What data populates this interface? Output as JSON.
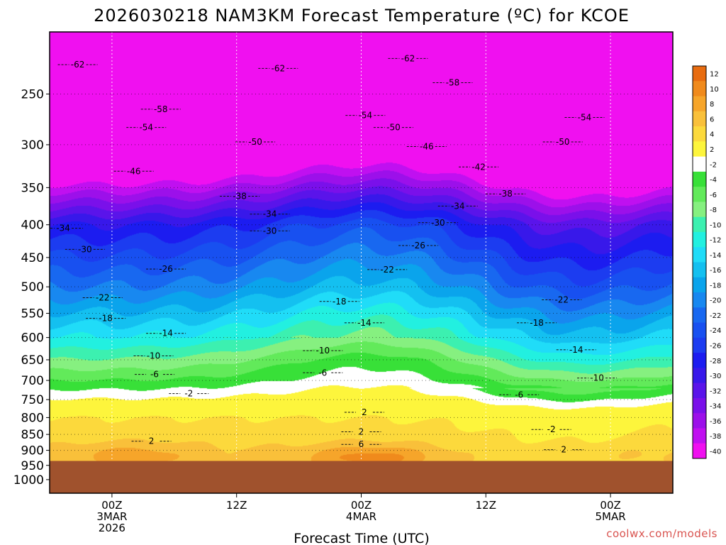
{
  "chart_data": {
    "type": "heatmap",
    "title": "2026030218 NAM3KM Forecast Temperature (ºC) for KCOE",
    "xlabel": "Forecast Time (UTC)",
    "ylabel": "",
    "y_scale": "log-pressure",
    "y_range_hpa": [
      200,
      1050
    ],
    "y_ticks": [
      "250",
      "300",
      "350",
      "400",
      "450",
      "500",
      "550",
      "600",
      "650",
      "700",
      "750",
      "800",
      "850",
      "900",
      "950",
      "1000"
    ],
    "x_ticks": [
      {
        "lines": [
          "00Z",
          "3MAR",
          "2026"
        ]
      },
      {
        "lines": [
          "12Z"
        ]
      },
      {
        "lines": [
          "00Z",
          "4MAR"
        ]
      },
      {
        "lines": [
          "12Z"
        ]
      },
      {
        "lines": [
          "00Z",
          "5MAR"
        ]
      }
    ],
    "x_tick_hours": [
      6,
      18,
      30,
      42,
      54
    ],
    "x_range_hours": [
      0,
      60
    ],
    "grid": true,
    "ground_level_hpa": 935,
    "colorbar": {
      "ticks": [
        "12",
        "10",
        "8",
        "6",
        "4",
        "2",
        "-2",
        "-4",
        "-6",
        "-8",
        "-10",
        "-12",
        "-14",
        "-16",
        "-18",
        "-20",
        "-22",
        "-24",
        "-26",
        "-28",
        "-30",
        "-32",
        "-34",
        "-36",
        "-38",
        "-40"
      ],
      "colors": [
        "#e86c10",
        "#f08a1c",
        "#f6a52a",
        "#f9c03a",
        "#fcd93c",
        "#fdf53c",
        "#ffffff",
        "#38e038",
        "#62ea5a",
        "#86f080",
        "#3cf0b0",
        "#22f0e0",
        "#20dcf8",
        "#14c0f0",
        "#0aa4ec",
        "#1888f0",
        "#1868f0",
        "#1850f0",
        "#1c3cf0",
        "#1c1cf0",
        "#3818ea",
        "#5a14ea",
        "#7a10ea",
        "#9c10ea",
        "#c010f0",
        "#f010f0"
      ]
    },
    "reference_levels": [
      {
        "p": 300,
        "temp": -50
      },
      {
        "p": 400,
        "temp": -30
      },
      {
        "p": 500,
        "temp": -22
      },
      {
        "p": 600,
        "temp": -14
      },
      {
        "p": 700,
        "temp": -6
      },
      {
        "p": 800,
        "temp": 2
      },
      {
        "p": 900,
        "temp": 4
      }
    ],
    "contour_labels": [
      {
        "text": "-62",
        "t": 2.7,
        "p": 225
      },
      {
        "text": "-62",
        "t": 22.0,
        "p": 228
      },
      {
        "text": "-62",
        "t": 34.5,
        "p": 220
      },
      {
        "text": "-58",
        "t": 10.7,
        "p": 264
      },
      {
        "text": "-58",
        "t": 38.8,
        "p": 240
      },
      {
        "text": "-54",
        "t": 9.3,
        "p": 282
      },
      {
        "text": "-54",
        "t": 30.4,
        "p": 270
      },
      {
        "text": "-54",
        "t": 51.5,
        "p": 272
      },
      {
        "text": "-50",
        "t": 19.8,
        "p": 297
      },
      {
        "text": "-50",
        "t": 33.1,
        "p": 282
      },
      {
        "text": "-50",
        "t": 49.4,
        "p": 297
      },
      {
        "text": "-46",
        "t": 8.1,
        "p": 330
      },
      {
        "text": "-46",
        "t": 36.3,
        "p": 302
      },
      {
        "text": "-42",
        "t": 41.3,
        "p": 325
      },
      {
        "text": "-38",
        "t": 18.3,
        "p": 361
      },
      {
        "text": "-38",
        "t": 43.9,
        "p": 358
      },
      {
        "text": "-34",
        "t": 1.3,
        "p": 405
      },
      {
        "text": "-34",
        "t": 21.2,
        "p": 385
      },
      {
        "text": "-34",
        "t": 39.3,
        "p": 374
      },
      {
        "text": "-30",
        "t": 3.4,
        "p": 437
      },
      {
        "text": "-30",
        "t": 21.2,
        "p": 409
      },
      {
        "text": "-30",
        "t": 37.4,
        "p": 397
      },
      {
        "text": "-26",
        "t": 11.2,
        "p": 469
      },
      {
        "text": "-26",
        "t": 35.5,
        "p": 431
      },
      {
        "text": "-22",
        "t": 5.1,
        "p": 520
      },
      {
        "text": "-22",
        "t": 32.5,
        "p": 470
      },
      {
        "text": "-22",
        "t": 49.3,
        "p": 524
      },
      {
        "text": "-18",
        "t": 5.4,
        "p": 560
      },
      {
        "text": "-18",
        "t": 27.9,
        "p": 527
      },
      {
        "text": "-18",
        "t": 46.9,
        "p": 569
      },
      {
        "text": "-14",
        "t": 11.2,
        "p": 591
      },
      {
        "text": "-14",
        "t": 30.3,
        "p": 569
      },
      {
        "text": "-14",
        "t": 50.7,
        "p": 627
      },
      {
        "text": "-10",
        "t": 10.0,
        "p": 641
      },
      {
        "text": "-10",
        "t": 26.3,
        "p": 629
      },
      {
        "text": "-10",
        "t": 52.7,
        "p": 694
      },
      {
        "text": "-6",
        "t": 10.1,
        "p": 685
      },
      {
        "text": "-6",
        "t": 26.3,
        "p": 681
      },
      {
        "text": "-6",
        "t": 45.2,
        "p": 737
      },
      {
        "text": "-2",
        "t": 13.4,
        "p": 734
      },
      {
        "text": "-2",
        "t": 48.3,
        "p": 835
      },
      {
        "text": "2",
        "t": 30.3,
        "p": 785
      },
      {
        "text": "2",
        "t": 9.8,
        "p": 871
      },
      {
        "text": "2",
        "t": 30.0,
        "p": 842
      },
      {
        "text": "2",
        "t": 49.5,
        "p": 898
      },
      {
        "text": "6",
        "t": 30.0,
        "p": 881
      }
    ],
    "hot_spots": [
      {
        "t": 31.0,
        "p": 925,
        "temp": 9
      },
      {
        "t": 8.0,
        "p": 918,
        "temp": 7
      },
      {
        "t": 57.0,
        "p": 920,
        "temp": 5
      }
    ]
  },
  "credit": "coolwx.com/models"
}
